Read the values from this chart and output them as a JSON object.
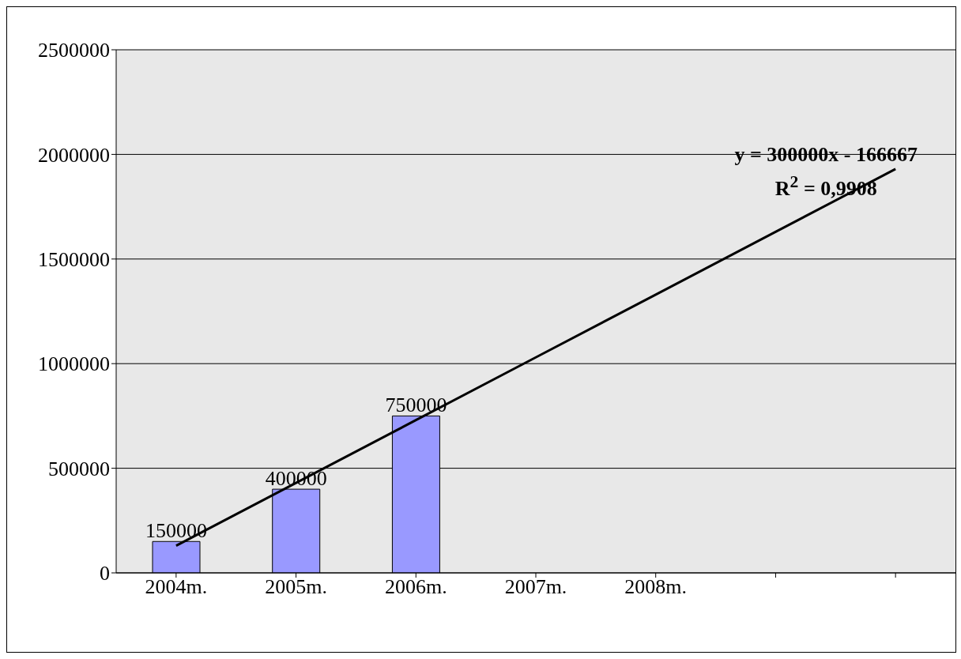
{
  "chart_data": {
    "type": "bar",
    "categories": [
      "2004m.",
      "2005m.",
      "2006m.",
      "2007m.",
      "2008m.",
      null,
      null
    ],
    "series": [
      {
        "color": "#9999ff",
        "values": [
          150000,
          400000,
          750000,
          null,
          null,
          null,
          null
        ],
        "value_labels": [
          "150000",
          "400000",
          "750000",
          null,
          null,
          null,
          null
        ]
      },
      {
        "type": "line",
        "color": "#000000",
        "values": [
          130000,
          430000,
          730000,
          1030000,
          1330000,
          1630000,
          1930000
        ]
      }
    ],
    "ylim": [
      0,
      2500000
    ],
    "yticks": [
      0,
      500000,
      1000000,
      1500000,
      2000000,
      2500000
    ],
    "grid": "y",
    "legend": false,
    "marker": "none",
    "annotations": [
      "y = 300000x - 166667",
      "R$^{2}$ = 0,9908"
    ]
  }
}
